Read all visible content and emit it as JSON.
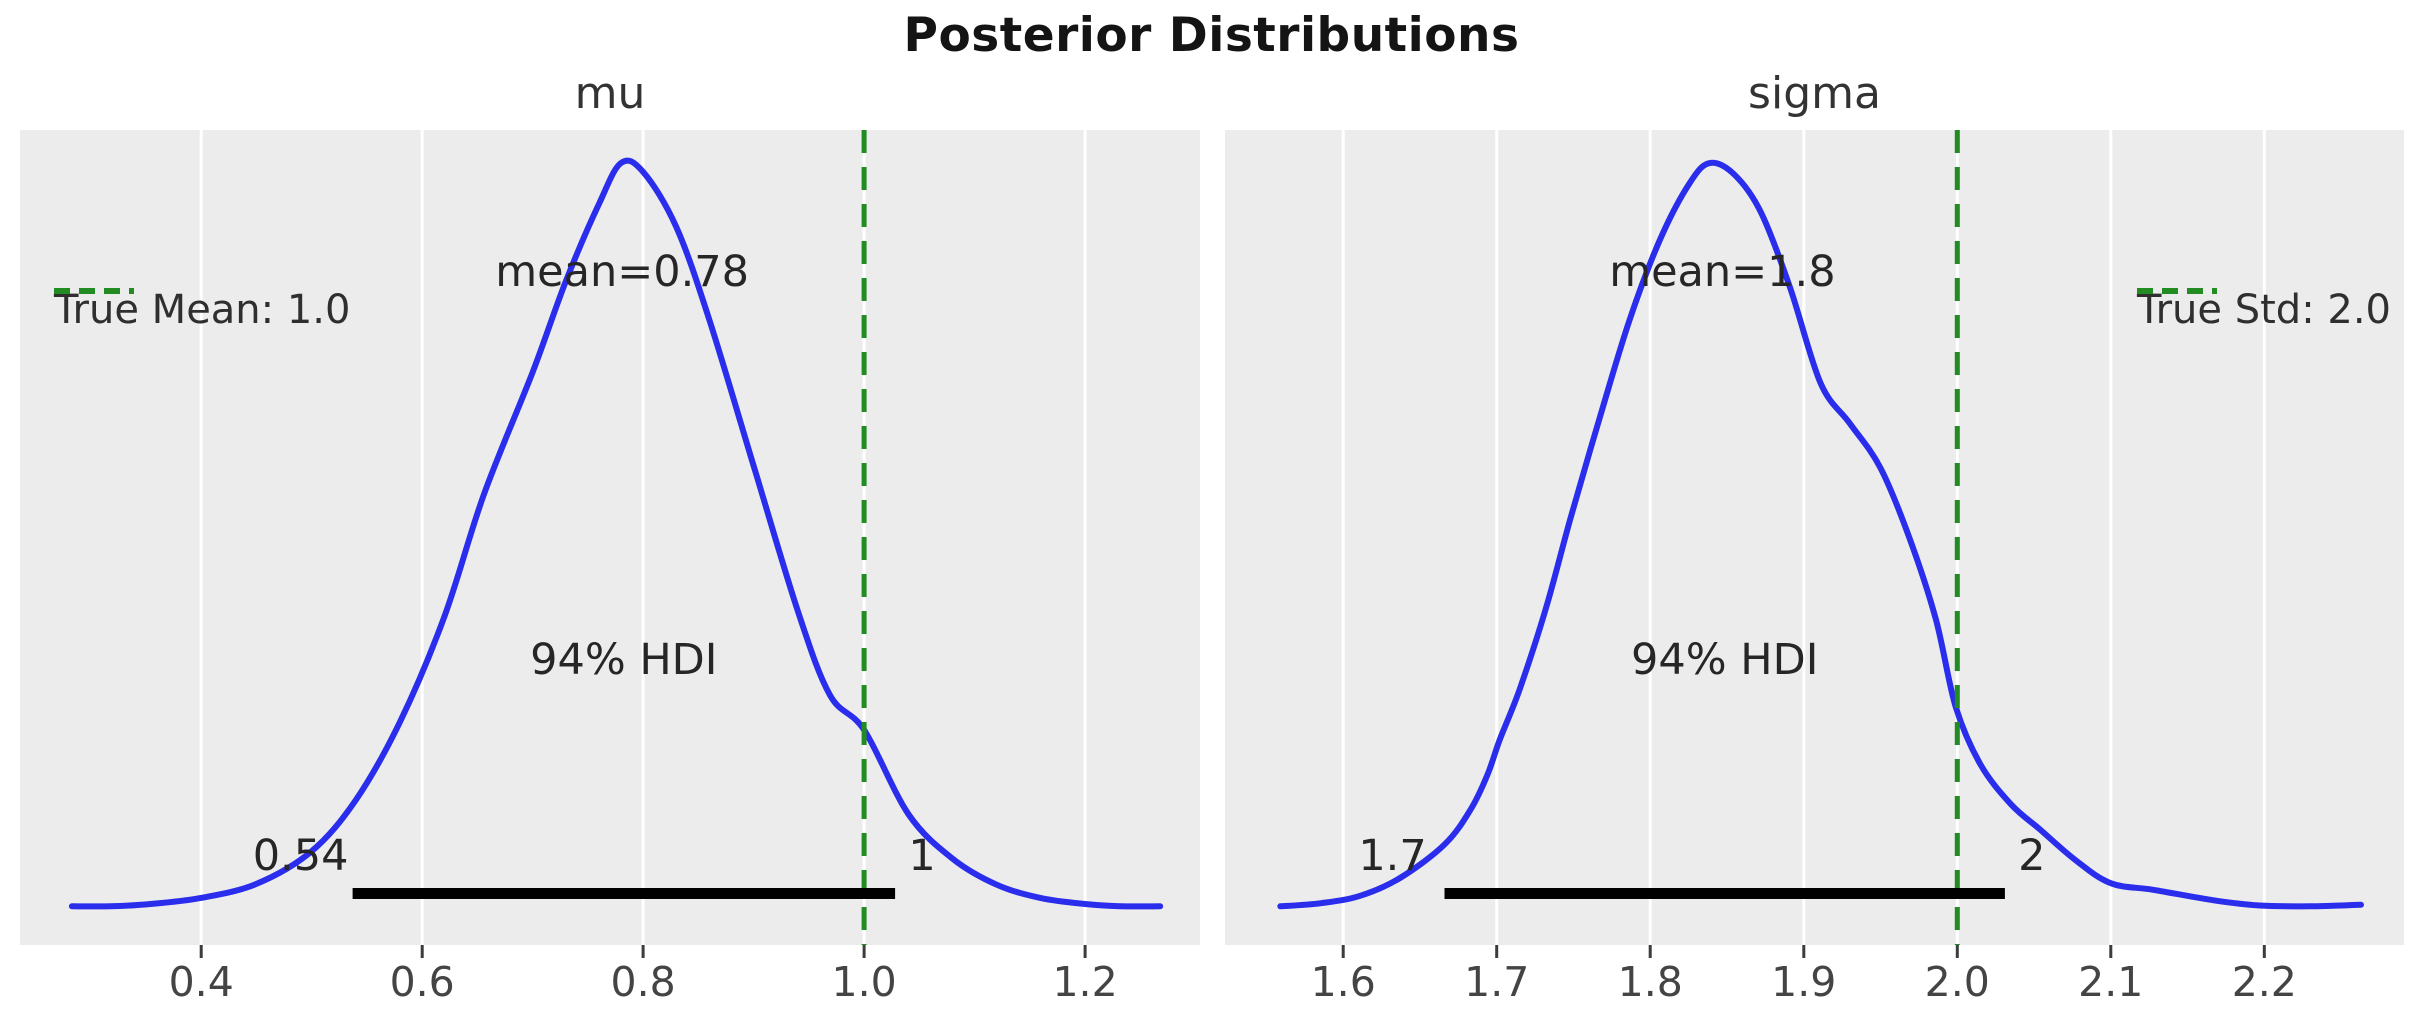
{
  "figure": {
    "title": "Posterior Distributions",
    "background_color": "#ffffff",
    "panel_background_color": "#ececec",
    "grid_color": "#ffffff",
    "curve_color": "#2a2eec",
    "ref_line_color": "#228b22",
    "hdi_bar_color": "#000000",
    "legend_position_left_panel": "upper-left",
    "legend_position_right_panel": "upper-right"
  },
  "chart_data": [
    {
      "type": "kde",
      "title": "mu",
      "xlim": [
        0.236,
        1.304
      ],
      "xticks": [
        0.4,
        0.6,
        0.8,
        1.0,
        1.2
      ],
      "xtick_labels": [
        "0.4",
        "0.6",
        "0.8",
        "1.0",
        "1.2"
      ],
      "ref_line": {
        "value": 1.0,
        "legend_label": "True Mean: 1.0"
      },
      "mean": {
        "value": 0.78,
        "label": "mean=0.78",
        "label_x": 0.781
      },
      "hdi": {
        "low": 0.537,
        "high": 1.028,
        "low_label": "0.54",
        "high_label": "1",
        "band_label": "94% HDI",
        "probability": 0.94
      },
      "curve": {
        "x": [
          0.283,
          0.318,
          0.354,
          0.399,
          0.45,
          0.5,
          0.54,
          0.58,
          0.62,
          0.656,
          0.7,
          0.73,
          0.76,
          0.78,
          0.8,
          0.83,
          0.86,
          0.9,
          0.94,
          0.969,
          1.0,
          1.04,
          1.08,
          1.12,
          1.16,
          1.2,
          1.232,
          1.268
        ],
        "h": [
          0.001,
          0.001,
          0.004,
          0.012,
          0.031,
          0.075,
          0.144,
          0.249,
          0.39,
          0.555,
          0.719,
          0.841,
          0.945,
          1.0,
          0.988,
          0.914,
          0.789,
          0.593,
          0.398,
          0.285,
          0.238,
          0.125,
          0.065,
          0.03,
          0.012,
          0.004,
          0.001,
          0.001
        ]
      }
    },
    {
      "type": "kde",
      "title": "sigma",
      "xlim": [
        1.523,
        2.291
      ],
      "xticks": [
        1.6,
        1.7,
        1.8,
        1.9,
        2.0,
        2.1,
        2.2
      ],
      "xtick_labels": [
        "1.6",
        "1.7",
        "1.8",
        "1.9",
        "2.0",
        "2.1",
        "2.2"
      ],
      "ref_line": {
        "value": 2.0,
        "legend_label": "True Std: 2.0"
      },
      "mean": {
        "value": 1.8,
        "label": "mean=1.8",
        "label_x": 1.847
      },
      "hdi": {
        "low": 1.666,
        "high": 2.031,
        "low_label": "1.7",
        "high_label": "2",
        "band_label": "94% HDI",
        "probability": 0.94
      },
      "curve": {
        "x": [
          1.559,
          1.585,
          1.611,
          1.637,
          1.666,
          1.683,
          1.694,
          1.702,
          1.715,
          1.732,
          1.748,
          1.767,
          1.787,
          1.807,
          1.826,
          1.839,
          1.855,
          1.872,
          1.891,
          1.911,
          1.93,
          1.95,
          1.969,
          1.986,
          1.999,
          2.015,
          2.035,
          2.054,
          2.077,
          2.1,
          2.128,
          2.167,
          2.197,
          2.23,
          2.263
        ],
        "h": [
          0.001,
          0.005,
          0.015,
          0.039,
          0.084,
          0.131,
          0.178,
          0.225,
          0.293,
          0.401,
          0.522,
          0.657,
          0.792,
          0.9,
          0.974,
          1.0,
          0.984,
          0.934,
          0.833,
          0.704,
          0.65,
          0.59,
          0.495,
          0.387,
          0.269,
          0.192,
          0.138,
          0.104,
          0.063,
          0.032,
          0.023,
          0.009,
          0.002,
          0.001,
          0.003
        ]
      }
    }
  ]
}
